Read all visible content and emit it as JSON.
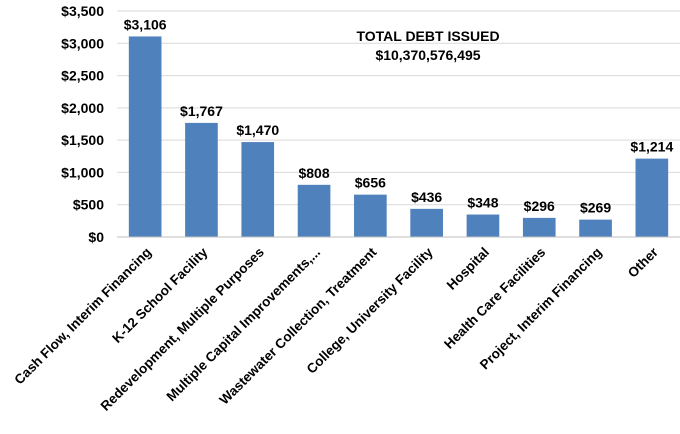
{
  "chart_data": {
    "type": "bar",
    "categories": [
      "Cash Flow, Interim Financing",
      "K-12 School Facility",
      "Redevelopment, Multiple Purposes",
      "Multiple Capital Improvements,...",
      "Wastewater Collection, Treatment",
      "College, University Facility",
      "Hospital",
      "Health Care Facilities",
      "Project, Interim Financing",
      "Other"
    ],
    "values": [
      3106,
      1767,
      1470,
      808,
      656,
      436,
      348,
      296,
      269,
      1214
    ],
    "data_labels": [
      "$3,106",
      "$1,767",
      "$1,470",
      "$808",
      "$656",
      "$436",
      "$348",
      "$296",
      "$269",
      "$1,214"
    ],
    "yticks": [
      {
        "value": 0,
        "label": "$0"
      },
      {
        "value": 500,
        "label": "$500"
      },
      {
        "value": 1000,
        "label": "$1,000"
      },
      {
        "value": 1500,
        "label": "$1,500"
      },
      {
        "value": 2000,
        "label": "$2,000"
      },
      {
        "value": 2500,
        "label": "$2,500"
      },
      {
        "value": 3000,
        "label": "$3,000"
      },
      {
        "value": 3500,
        "label": "$3,500"
      }
    ],
    "ylim": [
      0,
      3500
    ],
    "grid": true,
    "bar_color": "#4f81bd",
    "annotation": {
      "line1": "TOTAL DEBT ISSUED",
      "line2": "$10,370,576,495"
    }
  }
}
